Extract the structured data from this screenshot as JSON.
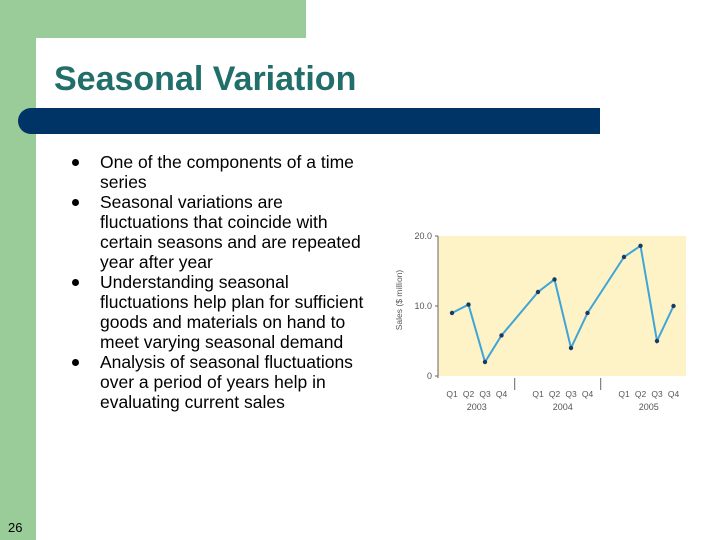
{
  "slide": {
    "title": "Seasonal Variation",
    "page_number": "26",
    "bullets": [
      "One of the components of a time series",
      "Seasonal variations are fluctuations that coincide with certain seasons and are repeated year after year",
      "Understanding seasonal fluctuations help plan for sufficient goods and materials on hand to meet varying seasonal demand",
      "Analysis of seasonal fluctuations over a period of years help in evaluating current sales"
    ],
    "colors": {
      "frame_green": "#99cc99",
      "title_teal": "#216e6b",
      "title_bar_navy": "#003366",
      "chart_background": "#fdf3c6",
      "series_line": "#3ea5d8"
    }
  },
  "chart_data": {
    "type": "line",
    "ylabel": "Sales ($ million)",
    "ylim": [
      0,
      20
    ],
    "y_ticks": [
      "20.0",
      "10.0",
      "0"
    ],
    "grid": false,
    "years": [
      {
        "year": "2003",
        "quarters": [
          "Q1",
          "Q2",
          "Q3",
          "Q4"
        ],
        "values": [
          9.0,
          10.2,
          2.0,
          5.8
        ]
      },
      {
        "year": "2004",
        "quarters": [
          "Q1",
          "Q2",
          "Q3",
          "Q4"
        ],
        "values": [
          12.0,
          13.8,
          4.0,
          9.0
        ]
      },
      {
        "year": "2005",
        "quarters": [
          "Q1",
          "Q2",
          "Q3",
          "Q4"
        ],
        "values": [
          17.0,
          18.6,
          5.0,
          10.0
        ]
      }
    ]
  }
}
